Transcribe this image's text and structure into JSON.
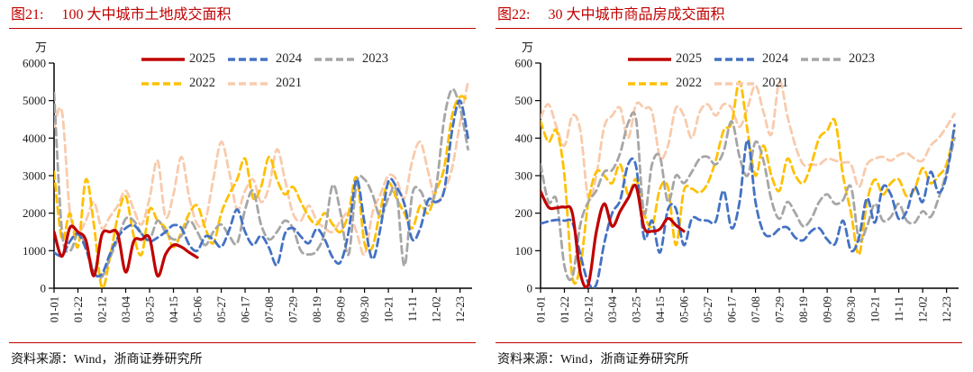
{
  "panels": [
    {
      "fig_label": "图21:",
      "title": "100 大中城市土地成交面积",
      "source_prefix": "资料来源：",
      "source_text": "Wind，浙商证券研究所"
    },
    {
      "fig_label": "图22:",
      "title": "30 大中城市商品房成交面积",
      "source_prefix": "资料来源：",
      "source_text": "Wind，浙商证券研究所"
    }
  ],
  "colors": {
    "title": "#c00000",
    "divider": "#c00000",
    "axis": "#000000",
    "tick_text": "#1a1a1a",
    "series_2025": "#c00000",
    "series_2024": "#4472c4",
    "series_2023": "#a6a6a6",
    "series_2022": "#ffc000",
    "series_2021": "#f8cbad"
  },
  "chart_data": [
    {
      "type": "line",
      "title": "100 大中城市土地成交面积",
      "unit": "万",
      "ylim": [
        0,
        6000
      ],
      "y_ticks": [
        0,
        1000,
        2000,
        3000,
        4000,
        5000,
        6000
      ],
      "x_range_days": [
        0,
        366
      ],
      "x_tick_days": [
        0,
        21,
        42,
        63,
        84,
        105,
        126,
        147,
        168,
        189,
        210,
        231,
        252,
        273,
        294,
        315,
        336,
        357
      ],
      "x_tick_labels": [
        "01-01",
        "01-22",
        "02-12",
        "03-04",
        "03-25",
        "04-15",
        "05-06",
        "05-27",
        "06-17",
        "07-08",
        "07-29",
        "08-19",
        "09-09",
        "09-30",
        "10-21",
        "11-11",
        "12-02",
        "12-23"
      ],
      "legend_rows": [
        [
          "2025",
          "2024",
          "2023"
        ],
        [
          "2022",
          "2021"
        ]
      ],
      "series": [
        {
          "name": "2025",
          "color": "#c00000",
          "dash": "solid",
          "x_start_day": 0,
          "x_step_days": 7,
          "values": [
            1500,
            850,
            1620,
            1500,
            1280,
            330,
            1420,
            1500,
            1450,
            430,
            1250,
            1300,
            1340,
            330,
            900,
            1150,
            1100,
            950,
            820
          ]
        },
        {
          "name": "2024",
          "color": "#4472c4",
          "dash": "dashed",
          "x_start_day": 0,
          "x_step_days": 7,
          "values": [
            950,
            870,
            1250,
            1450,
            1050,
            400,
            380,
            900,
            1350,
            1600,
            1680,
            1450,
            1250,
            1350,
            1500,
            1680,
            1600,
            1150,
            1000,
            1380,
            1300,
            1100,
            1550,
            2100,
            1500,
            1150,
            1400,
            1080,
            620,
            1450,
            1600,
            1380,
            1200,
            1580,
            1300,
            820,
            700,
            1500,
            2900,
            1750,
            780,
            1600,
            2850,
            2700,
            2250,
            1300,
            1600,
            2350,
            2300,
            2600,
            4200,
            5000,
            4000
          ]
        },
        {
          "name": "2023",
          "color": "#a6a6a6",
          "dash": "dashed",
          "x_start_day": 0,
          "x_step_days": 7,
          "values": [
            5200,
            1500,
            1000,
            1450,
            1150,
            450,
            300,
            800,
            1300,
            1850,
            1800,
            1450,
            1300,
            1800,
            1500,
            1300,
            1400,
            1800,
            1500,
            1150,
            1500,
            1700,
            1400,
            1200,
            2100,
            2600,
            1700,
            1300,
            1500,
            1800,
            1600,
            1000,
            900,
            1000,
            1500,
            2750,
            2000,
            900,
            2800,
            2900,
            2500,
            1900,
            2400,
            2600,
            600,
            2500,
            2600,
            2200,
            2700,
            4500,
            5300,
            4800,
            3700
          ]
        },
        {
          "name": "2022",
          "color": "#ffc000",
          "dash": "dashed",
          "x_start_day": 0,
          "x_step_days": 7,
          "values": [
            3100,
            1300,
            2000,
            1100,
            2900,
            1700,
            30,
            800,
            1900,
            2450,
            1400,
            900,
            2100,
            1800,
            1600,
            1100,
            1500,
            2000,
            2200,
            1600,
            1200,
            2000,
            2500,
            2900,
            3450,
            2400,
            2700,
            3500,
            2900,
            2500,
            2700,
            2300,
            1900,
            1700,
            2000,
            1700,
            1500,
            2000,
            2950,
            1200,
            1100,
            2100,
            2800,
            2400,
            2000,
            1600,
            2200,
            2000,
            2600,
            3200,
            4600,
            5100,
            5000
          ]
        },
        {
          "name": "2021",
          "color": "#f8cbad",
          "dash": "dashed",
          "x_start_day": 0,
          "x_step_days": 7,
          "values": [
            4300,
            4700,
            2000,
            1500,
            1800,
            2300,
            1600,
            1900,
            2200,
            2600,
            2100,
            1700,
            2400,
            3400,
            1900,
            2500,
            3500,
            2400,
            1700,
            1800,
            2900,
            3900,
            3100,
            2100,
            2600,
            2900,
            2300,
            2700,
            3700,
            2900,
            2000,
            1800,
            2200,
            1800,
            1600,
            1500,
            1800,
            2000,
            1500,
            900,
            2000,
            2500,
            3000,
            2900,
            2400,
            3400,
            3900,
            3100,
            2300,
            2600,
            3200,
            4400,
            5500
          ]
        }
      ]
    },
    {
      "type": "line",
      "title": "30 大中城市商品房成交面积",
      "unit": "万",
      "ylim": [
        0,
        600
      ],
      "y_ticks": [
        0,
        100,
        200,
        300,
        400,
        500,
        600
      ],
      "x_range_days": [
        0,
        366
      ],
      "x_tick_days": [
        0,
        21,
        42,
        63,
        84,
        105,
        126,
        147,
        168,
        189,
        210,
        231,
        252,
        273,
        294,
        315,
        336,
        357
      ],
      "x_tick_labels": [
        "01-01",
        "01-22",
        "02-12",
        "03-04",
        "03-25",
        "04-15",
        "05-06",
        "05-27",
        "06-17",
        "07-08",
        "07-29",
        "08-19",
        "09-09",
        "09-30",
        "10-21",
        "11-11",
        "12-02",
        "12-23"
      ],
      "legend_rows": [
        [
          "2025",
          "2024",
          "2023"
        ],
        [
          "2022",
          "2021"
        ]
      ],
      "series": [
        {
          "name": "2025",
          "color": "#c00000",
          "dash": "solid",
          "x_start_day": 0,
          "x_step_days": 7,
          "values": [
            258,
            216,
            214,
            216,
            200,
            40,
            10,
            150,
            225,
            165,
            205,
            240,
            272,
            162,
            152,
            158,
            186,
            168,
            152
          ]
        },
        {
          "name": "2024",
          "color": "#4472c4",
          "dash": "dashed",
          "x_start_day": 0,
          "x_step_days": 7,
          "values": [
            172,
            178,
            182,
            180,
            175,
            90,
            15,
            10,
            120,
            200,
            235,
            330,
            325,
            135,
            180,
            95,
            210,
            212,
            115,
            185,
            182,
            180,
            178,
            260,
            160,
            230,
            395,
            230,
            150,
            140,
            158,
            162,
            135,
            128,
            152,
            160,
            130,
            118,
            180,
            100,
            135,
            240,
            175,
            270,
            250,
            185,
            205,
            270,
            230,
            310,
            255,
            300,
            435
          ]
        },
        {
          "name": "2023",
          "color": "#a6a6a6",
          "dash": "dashed",
          "x_start_day": 0,
          "x_step_days": 7,
          "values": [
            330,
            230,
            235,
            60,
            30,
            170,
            230,
            260,
            310,
            315,
            360,
            440,
            450,
            200,
            330,
            350,
            230,
            300,
            280,
            310,
            345,
            350,
            330,
            365,
            445,
            350,
            300,
            390,
            340,
            235,
            185,
            230,
            200,
            165,
            185,
            230,
            250,
            225,
            235,
            270,
            130,
            165,
            225,
            180,
            190,
            225,
            180,
            175,
            205,
            190,
            240,
            310,
            400
          ]
        },
        {
          "name": "2022",
          "color": "#ffc000",
          "dash": "dashed",
          "x_start_day": 0,
          "x_step_days": 7,
          "values": [
            445,
            390,
            420,
            300,
            30,
            60,
            230,
            310,
            300,
            280,
            330,
            250,
            290,
            200,
            165,
            265,
            270,
            115,
            260,
            265,
            255,
            280,
            340,
            420,
            440,
            550,
            420,
            300,
            380,
            300,
            260,
            345,
            300,
            280,
            330,
            400,
            420,
            445,
            300,
            200,
            90,
            230,
            290,
            250,
            280,
            290,
            245,
            265,
            320,
            280,
            300,
            330,
            420
          ]
        },
        {
          "name": "2021",
          "color": "#f8cbad",
          "dash": "dashed",
          "x_start_day": 0,
          "x_step_days": 7,
          "values": [
            455,
            490,
            430,
            380,
            460,
            420,
            240,
            300,
            430,
            460,
            480,
            400,
            490,
            480,
            470,
            350,
            380,
            480,
            460,
            400,
            470,
            490,
            460,
            490,
            480,
            430,
            480,
            540,
            470,
            410,
            550,
            460,
            380,
            330,
            330,
            330,
            345,
            340,
            335,
            330,
            270,
            330,
            345,
            350,
            340,
            355,
            360,
            345,
            340,
            380,
            400,
            430,
            465
          ]
        }
      ]
    }
  ]
}
